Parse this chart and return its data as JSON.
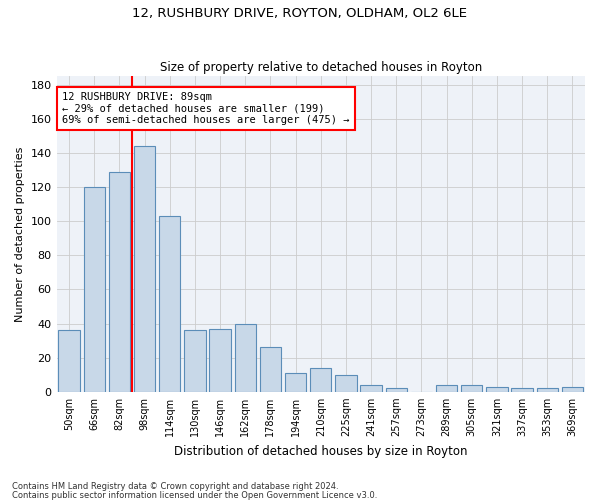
{
  "title": "12, RUSHBURY DRIVE, ROYTON, OLDHAM, OL2 6LE",
  "subtitle": "Size of property relative to detached houses in Royton",
  "xlabel": "Distribution of detached houses by size in Royton",
  "ylabel": "Number of detached properties",
  "bar_color": "#c8d8e8",
  "bar_edge_color": "#5b8db8",
  "background_color": "#eef2f8",
  "grid_color": "#cccccc",
  "categories": [
    "50sqm",
    "66sqm",
    "82sqm",
    "98sqm",
    "114sqm",
    "130sqm",
    "146sqm",
    "162sqm",
    "178sqm",
    "194sqm",
    "210sqm",
    "225sqm",
    "241sqm",
    "257sqm",
    "273sqm",
    "289sqm",
    "305sqm",
    "321sqm",
    "337sqm",
    "353sqm",
    "369sqm"
  ],
  "values": [
    36,
    120,
    129,
    144,
    103,
    36,
    37,
    40,
    26,
    11,
    14,
    10,
    4,
    2,
    0,
    4,
    4,
    3,
    2,
    2,
    3
  ],
  "ylim": [
    0,
    185
  ],
  "yticks": [
    0,
    20,
    40,
    60,
    80,
    100,
    120,
    140,
    160,
    180
  ],
  "red_line_x": 2.5,
  "annotation_text": "12 RUSHBURY DRIVE: 89sqm\n← 29% of detached houses are smaller (199)\n69% of semi-detached houses are larger (475) →",
  "annotation_box_color": "white",
  "annotation_box_edge": "red",
  "footer_line1": "Contains HM Land Registry data © Crown copyright and database right 2024.",
  "footer_line2": "Contains public sector information licensed under the Open Government Licence v3.0."
}
